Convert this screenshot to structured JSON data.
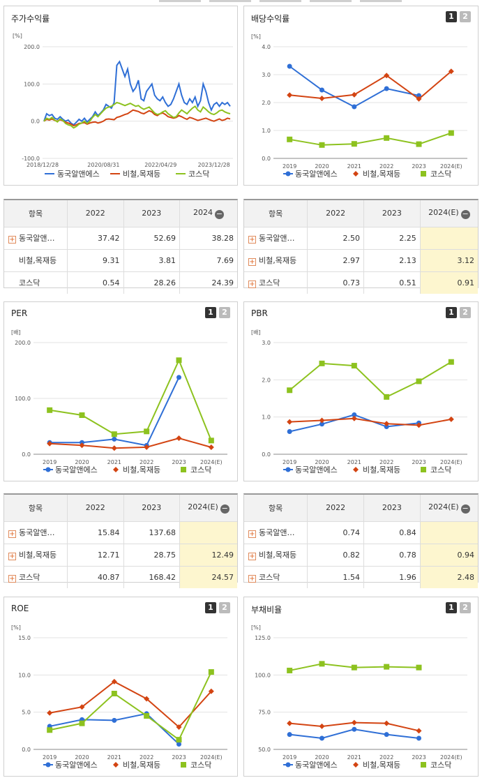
{
  "colors": {
    "dongkuk": "#2f6fd6",
    "steel": "#d34412",
    "kosdaq": "#8dc21f"
  },
  "icons": {
    "plus": "plus-icon",
    "minus": "minus-circle-icon"
  },
  "panels": {
    "stock": {
      "title": "주가수익률",
      "legend": [
        "동국알앤에스",
        "비철,목재등",
        "코스닥"
      ]
    },
    "dividend": {
      "title": "배당수익률",
      "tab1": "1",
      "tab2": "2",
      "legend": [
        "동국알앤에스",
        "비철,목재등",
        "코스닥"
      ]
    },
    "per": {
      "title": "PER",
      "tab1": "1",
      "tab2": "2",
      "legend": [
        "동국알앤에스",
        "비철,목재등",
        "코스닥"
      ]
    },
    "pbr": {
      "title": "PBR",
      "tab1": "1",
      "tab2": "2",
      "legend": [
        "동국알앤에스",
        "비철,목재등",
        "코스닥"
      ]
    },
    "roe": {
      "title": "ROE",
      "tab1": "1",
      "tab2": "2",
      "legend": [
        "동국알앤에스",
        "비철,목재등",
        "코스닥"
      ]
    },
    "debt": {
      "title": "부채비율",
      "tab1": "1",
      "tab2": "2",
      "legend": [
        "동국알앤에스",
        "비철,목재등",
        "코스닥"
      ]
    }
  },
  "tables": {
    "stock": {
      "headers": [
        "항목",
        "2022",
        "2023",
        "2024"
      ],
      "rows": [
        {
          "name": "동국알앤…",
          "plus": true,
          "values": [
            "37.42",
            "52.69",
            "38.28"
          ]
        },
        {
          "name": "비철,목재등",
          "plus": false,
          "values": [
            "9.31",
            "3.81",
            "7.69"
          ]
        },
        {
          "name": "코스닥",
          "plus": false,
          "values": [
            "0.54",
            "28.26",
            "24.39"
          ]
        }
      ]
    },
    "dividend": {
      "headers": [
        "항목",
        "2022",
        "2023",
        "2024(E)"
      ],
      "rows": [
        {
          "name": "동국알앤…",
          "plus": true,
          "values": [
            "2.50",
            "2.25",
            ""
          ]
        },
        {
          "name": "비철,목재등",
          "plus": true,
          "values": [
            "2.97",
            "2.13",
            "3.12"
          ]
        },
        {
          "name": "코스닥",
          "plus": true,
          "values": [
            "0.73",
            "0.51",
            "0.91"
          ]
        }
      ]
    },
    "per": {
      "headers": [
        "항목",
        "2022",
        "2023",
        "2024(E)"
      ],
      "rows": [
        {
          "name": "동국알앤…",
          "plus": true,
          "values": [
            "15.84",
            "137.68",
            ""
          ]
        },
        {
          "name": "비철,목재등",
          "plus": true,
          "values": [
            "12.71",
            "28.75",
            "12.49"
          ]
        },
        {
          "name": "코스닥",
          "plus": true,
          "values": [
            "40.87",
            "168.42",
            "24.57"
          ]
        }
      ]
    },
    "pbr": {
      "headers": [
        "항목",
        "2022",
        "2023",
        "2024(E)"
      ],
      "rows": [
        {
          "name": "동국알앤…",
          "plus": true,
          "values": [
            "0.74",
            "0.84",
            ""
          ]
        },
        {
          "name": "비철,목재등",
          "plus": true,
          "values": [
            "0.82",
            "0.78",
            "0.94"
          ]
        },
        {
          "name": "코스닥",
          "plus": true,
          "values": [
            "1.54",
            "1.96",
            "2.48"
          ]
        }
      ]
    }
  },
  "chart_data": [
    {
      "id": "stock",
      "type": "line",
      "title": "주가수익률",
      "ylabel": "[%]",
      "ylim": [
        -100,
        200
      ],
      "yticks": [
        "200.0",
        "100.0",
        "0.0",
        "-100.0"
      ],
      "xticks": [
        "2018/12/28",
        "2020/08/31",
        "2022/04/29",
        "2023/12/28"
      ],
      "series": [
        {
          "name": "동국알앤에스",
          "values": [
            0,
            20,
            15,
            18,
            8,
            5,
            12,
            5,
            0,
            3,
            -5,
            -10,
            -3,
            5,
            0,
            8,
            -2,
            5,
            12,
            25,
            15,
            22,
            30,
            45,
            40,
            35,
            50,
            150,
            160,
            140,
            120,
            140,
            100,
            80,
            90,
            110,
            60,
            55,
            80,
            90,
            100,
            70,
            60,
            55,
            65,
            50,
            40,
            45,
            60,
            80,
            100,
            70,
            50,
            45,
            60,
            50,
            65,
            40,
            55,
            100,
            80,
            50,
            30,
            45,
            50,
            40,
            50,
            45,
            50,
            40
          ]
        },
        {
          "name": "비철,목재등",
          "values": [
            0,
            5,
            3,
            6,
            2,
            0,
            4,
            1,
            -3,
            -5,
            -8,
            -12,
            -10,
            -6,
            -5,
            -4,
            -8,
            -5,
            -3,
            -2,
            -5,
            -3,
            0,
            5,
            6,
            5,
            4,
            10,
            12,
            15,
            18,
            20,
            25,
            30,
            28,
            26,
            22,
            20,
            24,
            28,
            25,
            18,
            15,
            20,
            22,
            18,
            12,
            10,
            8,
            10,
            15,
            12,
            8,
            5,
            10,
            8,
            5,
            2,
            4,
            6,
            8,
            5,
            2,
            0,
            3,
            6,
            2,
            4,
            8,
            6
          ]
        },
        {
          "name": "코스닥",
          "values": [
            0,
            8,
            5,
            10,
            3,
            -2,
            6,
            2,
            -6,
            -10,
            -12,
            -18,
            -14,
            -8,
            -5,
            0,
            -6,
            0,
            10,
            18,
            12,
            20,
            28,
            35,
            38,
            40,
            45,
            50,
            48,
            45,
            42,
            45,
            48,
            44,
            40,
            42,
            36,
            32,
            35,
            38,
            30,
            22,
            18,
            20,
            25,
            28,
            20,
            15,
            10,
            12,
            22,
            30,
            25,
            20,
            28,
            35,
            40,
            30,
            25,
            38,
            32,
            25,
            20,
            18,
            22,
            28,
            30,
            25,
            22,
            20
          ]
        }
      ]
    },
    {
      "id": "dividend",
      "type": "line",
      "title": "배당수익률",
      "ylabel": "[%]",
      "ylim": [
        0,
        4
      ],
      "yticks": [
        "4.0",
        "3.0",
        "2.0",
        "1.0",
        "0.0"
      ],
      "categories": [
        "2019",
        "2020",
        "2021",
        "2022",
        "2023",
        "2024(E)"
      ],
      "series": [
        {
          "name": "동국알앤에스",
          "values": [
            3.3,
            2.45,
            1.85,
            2.5,
            2.25,
            null
          ]
        },
        {
          "name": "비철,목재등",
          "values": [
            2.27,
            2.15,
            2.28,
            2.97,
            2.13,
            3.12
          ]
        },
        {
          "name": "코스닥",
          "values": [
            0.68,
            0.48,
            0.52,
            0.73,
            0.51,
            0.91
          ]
        }
      ]
    },
    {
      "id": "per",
      "type": "line",
      "title": "PER",
      "ylabel": "[배]",
      "ylim": [
        0,
        200
      ],
      "yticks": [
        "200.0",
        "100.0",
        "0.0"
      ],
      "categories": [
        "2019",
        "2020",
        "2021",
        "2022",
        "2023",
        "2024(E)"
      ],
      "series": [
        {
          "name": "동국알앤에스",
          "values": [
            21,
            21,
            27,
            15.84,
            137.68,
            null
          ]
        },
        {
          "name": "비철,목재등",
          "values": [
            19,
            16,
            11,
            12.71,
            28.75,
            12.49
          ]
        },
        {
          "name": "코스닥",
          "values": [
            79,
            70,
            36,
            40.87,
            168.42,
            24.57
          ]
        }
      ]
    },
    {
      "id": "pbr",
      "type": "line",
      "title": "PBR",
      "ylabel": "[배]",
      "ylim": [
        0,
        3
      ],
      "yticks": [
        "3.0",
        "2.0",
        "1.0",
        "0.0"
      ],
      "categories": [
        "2019",
        "2020",
        "2021",
        "2022",
        "2023",
        "2024(E)"
      ],
      "series": [
        {
          "name": "동국알앤에스",
          "values": [
            0.61,
            0.81,
            1.06,
            0.74,
            0.84,
            null
          ]
        },
        {
          "name": "비철,목재등",
          "values": [
            0.87,
            0.91,
            0.96,
            0.82,
            0.78,
            0.94
          ]
        },
        {
          "name": "코스닥",
          "values": [
            1.72,
            2.44,
            2.38,
            1.54,
            1.96,
            2.48
          ]
        }
      ]
    },
    {
      "id": "roe",
      "type": "line",
      "title": "ROE",
      "ylabel": "[%]",
      "ylim": [
        0,
        15
      ],
      "yticks": [
        "15.0",
        "10.0",
        "5.0",
        "0.0"
      ],
      "categories": [
        "2019",
        "2020",
        "2021",
        "2022",
        "2023",
        "2024(E)"
      ],
      "series": [
        {
          "name": "동국알앤에스",
          "values": [
            3.1,
            4.0,
            3.9,
            4.8,
            0.7,
            null
          ]
        },
        {
          "name": "비철,목재등",
          "values": [
            4.9,
            5.7,
            9.1,
            6.8,
            3.0,
            7.8
          ]
        },
        {
          "name": "코스닥",
          "values": [
            2.6,
            3.5,
            7.5,
            4.5,
            1.3,
            10.4
          ]
        }
      ]
    },
    {
      "id": "debt",
      "type": "line",
      "title": "부채비율",
      "ylabel": "[%]",
      "ylim": [
        50,
        125
      ],
      "yticks": [
        "125.0",
        "100.0",
        "75.0",
        "50.0"
      ],
      "categories": [
        "2019",
        "2020",
        "2021",
        "2022",
        "2023",
        "2024(E)"
      ],
      "series": [
        {
          "name": "동국알앤에스",
          "values": [
            60,
            57.5,
            63.5,
            60,
            57.5,
            null
          ]
        },
        {
          "name": "비철,목재등",
          "values": [
            67.5,
            65.5,
            68,
            67.5,
            62.5,
            null
          ]
        },
        {
          "name": "코스닥",
          "values": [
            103,
            107.5,
            105,
            105.5,
            105,
            null
          ]
        }
      ]
    }
  ]
}
